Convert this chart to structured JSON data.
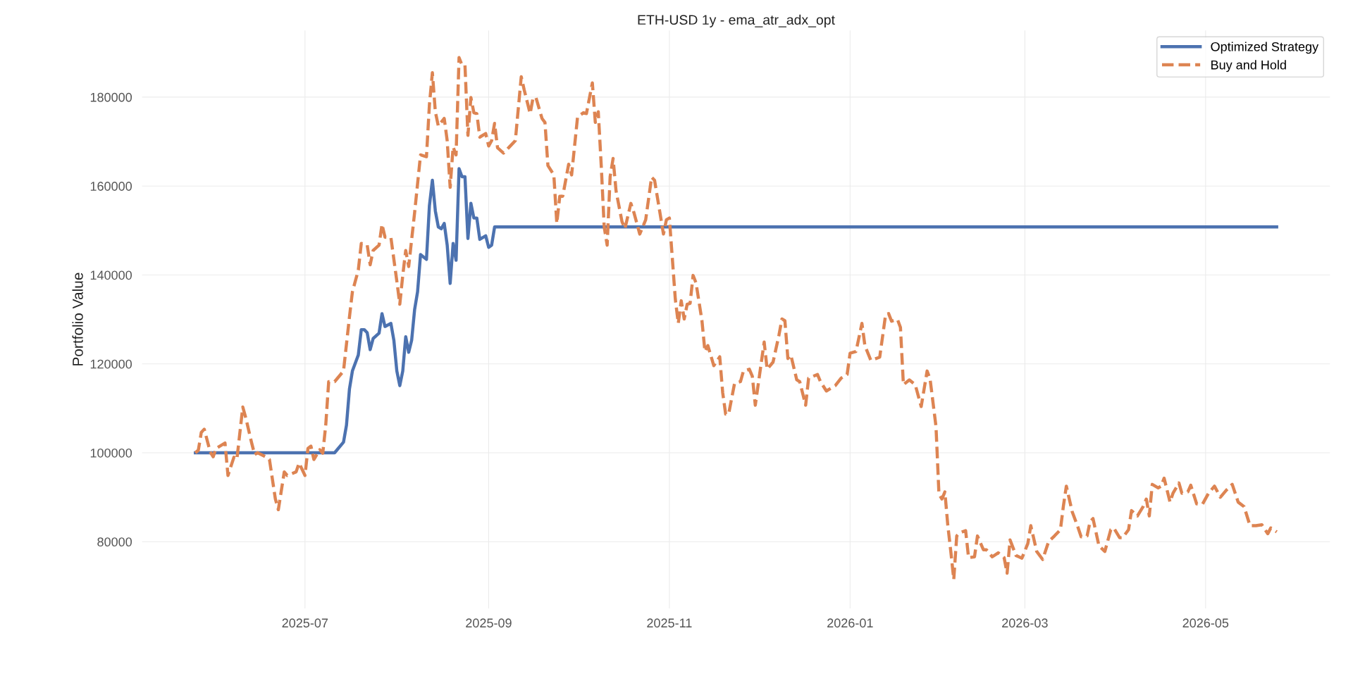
{
  "chart_data": {
    "type": "line",
    "title": "ETH-USD 1y - ema_atr_adx_opt",
    "ylabel": "Portfolio Value",
    "xlim": [
      "2025-05-07",
      "2026-06-12"
    ],
    "xticks": [
      "2025-07",
      "2025-09",
      "2025-11",
      "2026-01",
      "2026-03",
      "2026-05"
    ],
    "ylim": [
      65000,
      195000
    ],
    "yticks": [
      80000,
      100000,
      120000,
      140000,
      160000,
      180000
    ],
    "grid": true,
    "legend": "top right",
    "series": [
      {
        "name": "Optimized Strategy",
        "color": "#4c72b0",
        "line_style": "solid",
        "x": [
          "2025-05-25",
          "2025-07-11",
          "2025-07-14",
          "2025-07-15",
          "2025-07-16",
          "2025-07-17",
          "2025-07-19",
          "2025-07-20",
          "2025-07-21",
          "2025-07-22",
          "2025-07-23",
          "2025-07-24",
          "2025-07-26",
          "2025-07-27",
          "2025-07-28",
          "2025-07-30",
          "2025-07-31",
          "2025-08-01",
          "2025-08-02",
          "2025-08-03",
          "2025-08-04",
          "2025-08-05",
          "2025-08-06",
          "2025-08-07",
          "2025-08-08",
          "2025-08-09",
          "2025-08-11",
          "2025-08-12",
          "2025-08-13",
          "2025-08-14",
          "2025-08-15",
          "2025-08-16",
          "2025-08-17",
          "2025-08-18",
          "2025-08-19",
          "2025-08-20",
          "2025-08-21",
          "2025-08-22",
          "2025-08-23",
          "2025-08-24",
          "2025-08-25",
          "2025-08-26",
          "2025-08-27",
          "2025-08-28",
          "2025-08-29",
          "2025-08-31",
          "2025-09-01",
          "2025-09-02",
          "2025-09-03",
          "2026-05-25"
        ],
        "values": [
          100000,
          100000,
          102400,
          106200,
          114300,
          118400,
          122000,
          127700,
          127700,
          127000,
          123200,
          125700,
          126900,
          131300,
          128400,
          129100,
          125300,
          118400,
          115100,
          118400,
          126100,
          122600,
          125300,
          132200,
          136200,
          144600,
          143500,
          155600,
          161300,
          154400,
          150800,
          150400,
          151600,
          146700,
          138100,
          147100,
          143300,
          163900,
          162100,
          162100,
          148200,
          156100,
          152800,
          152800,
          148000,
          148800,
          146200,
          146700,
          150800,
          150800
        ]
      },
      {
        "name": "Buy and Hold",
        "color": "#dd8452",
        "line_style": "dashed",
        "x": [
          "2025-05-25",
          "2025-05-26",
          "2025-05-27",
          "2025-05-28",
          "2025-05-30",
          "2025-05-31",
          "2025-06-01",
          "2025-06-04",
          "2025-06-05",
          "2025-06-07",
          "2025-06-08",
          "2025-06-10",
          "2025-06-11",
          "2025-06-13",
          "2025-06-14",
          "2025-06-15",
          "2025-06-18",
          "2025-06-19",
          "2025-06-21",
          "2025-06-22",
          "2025-06-24",
          "2025-06-25",
          "2025-06-28",
          "2025-06-29",
          "2025-07-01",
          "2025-07-02",
          "2025-07-03",
          "2025-07-04",
          "2025-07-06",
          "2025-07-07",
          "2025-07-08",
          "2025-07-09",
          "2025-07-11",
          "2025-07-14",
          "2025-07-16",
          "2025-07-17",
          "2025-07-19",
          "2025-07-20",
          "2025-07-22",
          "2025-07-23",
          "2025-07-24",
          "2025-07-26",
          "2025-07-27",
          "2025-07-28",
          "2025-07-30",
          "2025-08-01",
          "2025-08-02",
          "2025-08-03",
          "2025-08-04",
          "2025-08-05",
          "2025-08-07",
          "2025-08-09",
          "2025-08-11",
          "2025-08-12",
          "2025-08-13",
          "2025-08-14",
          "2025-08-15",
          "2025-08-17",
          "2025-08-18",
          "2025-08-19",
          "2025-08-20",
          "2025-08-21",
          "2025-08-22",
          "2025-08-23",
          "2025-08-24",
          "2025-08-25",
          "2025-08-26",
          "2025-08-27",
          "2025-08-28",
          "2025-08-29",
          "2025-08-31",
          "2025-09-01",
          "2025-09-02",
          "2025-09-03",
          "2025-09-04",
          "2025-09-06",
          "2025-09-08",
          "2025-09-10",
          "2025-09-12",
          "2025-09-13",
          "2025-09-15",
          "2025-09-16",
          "2025-09-17",
          "2025-09-19",
          "2025-09-20",
          "2025-09-21",
          "2025-09-23",
          "2025-09-24",
          "2025-09-25",
          "2025-09-26",
          "2025-09-28",
          "2025-09-29",
          "2025-10-01",
          "2025-10-03",
          "2025-10-04",
          "2025-10-06",
          "2025-10-07",
          "2025-10-08",
          "2025-10-09",
          "2025-10-10",
          "2025-10-11",
          "2025-10-12",
          "2025-10-13",
          "2025-10-14",
          "2025-10-16",
          "2025-10-17",
          "2025-10-19",
          "2025-10-20",
          "2025-10-22",
          "2025-10-24",
          "2025-10-26",
          "2025-10-27",
          "2025-10-30",
          "2025-10-31",
          "2025-11-01",
          "2025-11-03",
          "2025-11-04",
          "2025-11-05",
          "2025-11-06",
          "2025-11-07",
          "2025-11-08",
          "2025-11-09",
          "2025-11-10",
          "2025-11-12",
          "2025-11-13",
          "2025-11-14",
          "2025-11-16",
          "2025-11-18",
          "2025-11-19",
          "2025-11-20",
          "2025-11-21",
          "2025-11-23",
          "2025-11-25",
          "2025-11-26",
          "2025-11-28",
          "2025-11-29",
          "2025-11-30",
          "2025-12-03",
          "2025-12-04",
          "2025-12-06",
          "2025-12-08",
          "2025-12-09",
          "2025-12-10",
          "2025-12-11",
          "2025-12-12",
          "2025-12-14",
          "2025-12-15",
          "2025-12-17",
          "2025-12-18",
          "2025-12-21",
          "2025-12-22",
          "2025-12-24",
          "2025-12-27",
          "2025-12-29",
          "2025-12-31",
          "2026-01-01",
          "2026-01-03",
          "2026-01-05",
          "2026-01-06",
          "2026-01-08",
          "2026-01-11",
          "2026-01-13",
          "2026-01-14",
          "2026-01-15",
          "2026-01-17",
          "2026-01-18",
          "2026-01-19",
          "2026-01-21",
          "2026-01-23",
          "2026-01-25",
          "2026-01-27",
          "2026-01-28",
          "2026-01-30",
          "2026-01-31",
          "2026-02-01",
          "2026-02-02",
          "2026-02-03",
          "2026-02-04",
          "2026-02-05",
          "2026-02-06",
          "2026-02-07",
          "2026-02-09",
          "2026-02-10",
          "2026-02-12",
          "2026-02-13",
          "2026-02-15",
          "2026-02-16",
          "2026-02-18",
          "2026-02-20",
          "2026-02-22",
          "2026-02-23",
          "2026-02-24",
          "2026-02-26",
          "2026-02-27",
          "2026-02-28",
          "2026-03-02",
          "2026-03-03",
          "2026-03-05",
          "2026-03-07",
          "2026-03-09",
          "2026-03-11",
          "2026-03-13",
          "2026-03-14",
          "2026-03-15",
          "2026-03-17",
          "2026-03-19",
          "2026-03-20",
          "2026-03-22",
          "2026-03-23",
          "2026-03-24",
          "2026-03-26",
          "2026-03-28",
          "2026-03-30",
          "2026-03-31",
          "2026-04-02",
          "2026-04-03",
          "2026-04-05",
          "2026-04-06",
          "2026-04-08",
          "2026-04-10",
          "2026-04-11",
          "2026-04-12",
          "2026-04-13",
          "2026-04-15",
          "2026-04-16",
          "2026-04-17",
          "2026-04-19",
          "2026-04-20",
          "2026-04-22",
          "2026-04-23",
          "2026-04-25",
          "2026-04-26",
          "2026-04-28",
          "2026-04-30",
          "2026-05-02",
          "2026-05-04",
          "2026-05-06",
          "2026-05-08",
          "2026-05-10",
          "2026-05-12",
          "2026-05-14",
          "2026-05-16",
          "2026-05-18",
          "2026-05-20",
          "2026-05-22",
          "2026-05-23",
          "2026-05-24",
          "2026-05-25"
        ],
        "values": [
          100000,
          100600,
          104600,
          105300,
          100200,
          99100,
          101000,
          102200,
          94900,
          99000,
          98500,
          110300,
          107900,
          102200,
          99600,
          100000,
          99000,
          98500,
          89600,
          87200,
          95700,
          94900,
          95700,
          97700,
          94900,
          101000,
          101500,
          98500,
          100700,
          99900,
          106200,
          116000,
          116000,
          118400,
          130500,
          136200,
          141100,
          147100,
          146700,
          142300,
          145500,
          146700,
          151400,
          148500,
          148400,
          138600,
          133400,
          139900,
          145500,
          141900,
          154000,
          167000,
          166600,
          178300,
          185500,
          176700,
          173500,
          175200,
          170200,
          159700,
          168800,
          167000,
          188900,
          187200,
          187200,
          171400,
          179900,
          176500,
          176300,
          171000,
          171800,
          169000,
          170200,
          174100,
          168600,
          167400,
          168800,
          170200,
          184600,
          181600,
          176300,
          179900,
          179800,
          175200,
          174300,
          164600,
          162500,
          151600,
          157700,
          157700,
          164900,
          162500,
          175500,
          176500,
          176300,
          183200,
          174300,
          176700,
          164600,
          150800,
          146700,
          162100,
          166200,
          158900,
          152000,
          150400,
          156100,
          154100,
          149200,
          152400,
          162000,
          161300,
          149200,
          152400,
          152800,
          134600,
          129100,
          134200,
          130100,
          133400,
          133600,
          139900,
          138200,
          129700,
          122800,
          124100,
          119600,
          121600,
          113500,
          108700,
          108700,
          115600,
          116000,
          118400,
          118800,
          117200,
          110700,
          124900,
          118800,
          120400,
          126500,
          130100,
          129700,
          121200,
          122000,
          116400,
          116000,
          110700,
          116800,
          117600,
          116000,
          113900,
          115100,
          116800,
          117600,
          122400,
          122800,
          129100,
          124100,
          120800,
          121500,
          131100,
          131300,
          129600,
          130000,
          128200,
          115300,
          116400,
          115300,
          110400,
          118400,
          116600,
          105900,
          90700,
          89600,
          91200,
          83600,
          77800,
          71500,
          81300,
          82000,
          82500,
          76400,
          76600,
          81300,
          78200,
          78200,
          76600,
          77500,
          76400,
          72900,
          80400,
          76900,
          76600,
          76300,
          79600,
          83600,
          77800,
          76000,
          80000,
          81300,
          82700,
          88000,
          92500,
          86700,
          83100,
          81100,
          81300,
          84500,
          85200,
          79100,
          77800,
          82700,
          83100,
          80900,
          80900,
          82700,
          87000,
          85800,
          88000,
          89600,
          85800,
          92900,
          92100,
          92500,
          94300,
          88900,
          90900,
          93200,
          90900,
          91200,
          92700,
          88500,
          88500,
          90900,
          92500,
          90000,
          91600,
          92900,
          88900,
          87900,
          83600,
          83600,
          83800,
          81800,
          83100,
          82700,
          82200
        ]
      }
    ]
  }
}
